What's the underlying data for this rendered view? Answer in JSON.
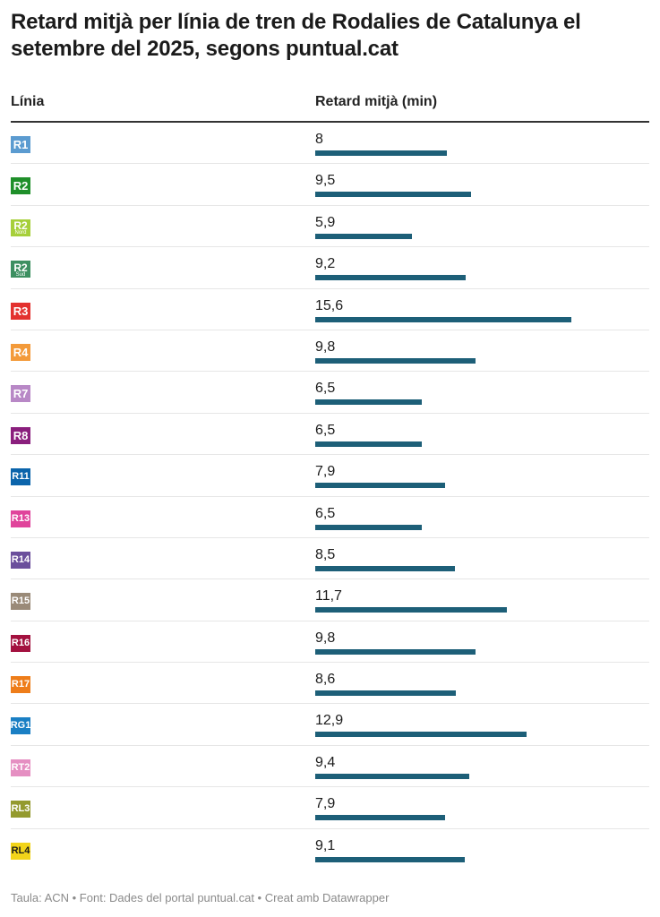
{
  "title": "Retard mitjà per línia de tren de Rodalies de Catalunya el setembre del 2025, segons puntual.cat",
  "columns": {
    "line": "Línia",
    "delay": "Retard mitjà (min)"
  },
  "footer": "Taula: ACN • Font: Dades del portal puntual.cat • Creat amb Datawrapper",
  "colors": {
    "bar": "#1d5f78"
  },
  "chart_data": {
    "type": "table",
    "xlabel": "Retard mitjà (min)",
    "ylabel": "Línia",
    "xlim": [
      0,
      16
    ],
    "rows": [
      {
        "line": "R1",
        "sub": "",
        "value": 8,
        "label": "8",
        "color": "#5b9bd0",
        "text_color": "#ffffff"
      },
      {
        "line": "R2",
        "sub": "",
        "value": 9.5,
        "label": "9,5",
        "color": "#1f8f2a",
        "text_color": "#ffffff"
      },
      {
        "line": "R2",
        "sub": "Nord",
        "value": 5.9,
        "label": "5,9",
        "color": "#a6cf3a",
        "text_color": "#ffffff"
      },
      {
        "line": "R2",
        "sub": "Sud",
        "value": 9.2,
        "label": "9,2",
        "color": "#3d8f61",
        "text_color": "#ffffff"
      },
      {
        "line": "R3",
        "sub": "",
        "value": 15.6,
        "label": "15,6",
        "color": "#e3312f",
        "text_color": "#ffffff"
      },
      {
        "line": "R4",
        "sub": "",
        "value": 9.8,
        "label": "9,8",
        "color": "#f39a3a",
        "text_color": "#ffffff"
      },
      {
        "line": "R7",
        "sub": "",
        "value": 6.5,
        "label": "6,5",
        "color": "#b888c6",
        "text_color": "#ffffff"
      },
      {
        "line": "R8",
        "sub": "",
        "value": 6.5,
        "label": "6,5",
        "color": "#8a1f7d",
        "text_color": "#ffffff"
      },
      {
        "line": "R11",
        "sub": "",
        "value": 7.9,
        "label": "7,9",
        "color": "#0b64ab",
        "text_color": "#ffffff"
      },
      {
        "line": "R13",
        "sub": "",
        "value": 6.5,
        "label": "6,5",
        "color": "#e0449b",
        "text_color": "#ffffff"
      },
      {
        "line": "R14",
        "sub": "",
        "value": 8.5,
        "label": "8,5",
        "color": "#6b4f9c",
        "text_color": "#ffffff"
      },
      {
        "line": "R15",
        "sub": "",
        "value": 11.7,
        "label": "11,7",
        "color": "#9a8a78",
        "text_color": "#ffffff"
      },
      {
        "line": "R16",
        "sub": "",
        "value": 9.8,
        "label": "9,8",
        "color": "#a3113f",
        "text_color": "#ffffff"
      },
      {
        "line": "R17",
        "sub": "",
        "value": 8.6,
        "label": "8,6",
        "color": "#ee7d1a",
        "text_color": "#ffffff"
      },
      {
        "line": "RG1",
        "sub": "",
        "value": 12.9,
        "label": "12,9",
        "color": "#1a7fc4",
        "text_color": "#ffffff"
      },
      {
        "line": "RT2",
        "sub": "",
        "value": 9.4,
        "label": "9,4",
        "color": "#e58fc2",
        "text_color": "#ffffff"
      },
      {
        "line": "RL3",
        "sub": "",
        "value": 7.9,
        "label": "7,9",
        "color": "#949a2e",
        "text_color": "#ffffff"
      },
      {
        "line": "RL4",
        "sub": "",
        "value": 9.1,
        "label": "9,1",
        "color": "#f2d41a",
        "text_color": "#1b1b1b"
      }
    ]
  }
}
